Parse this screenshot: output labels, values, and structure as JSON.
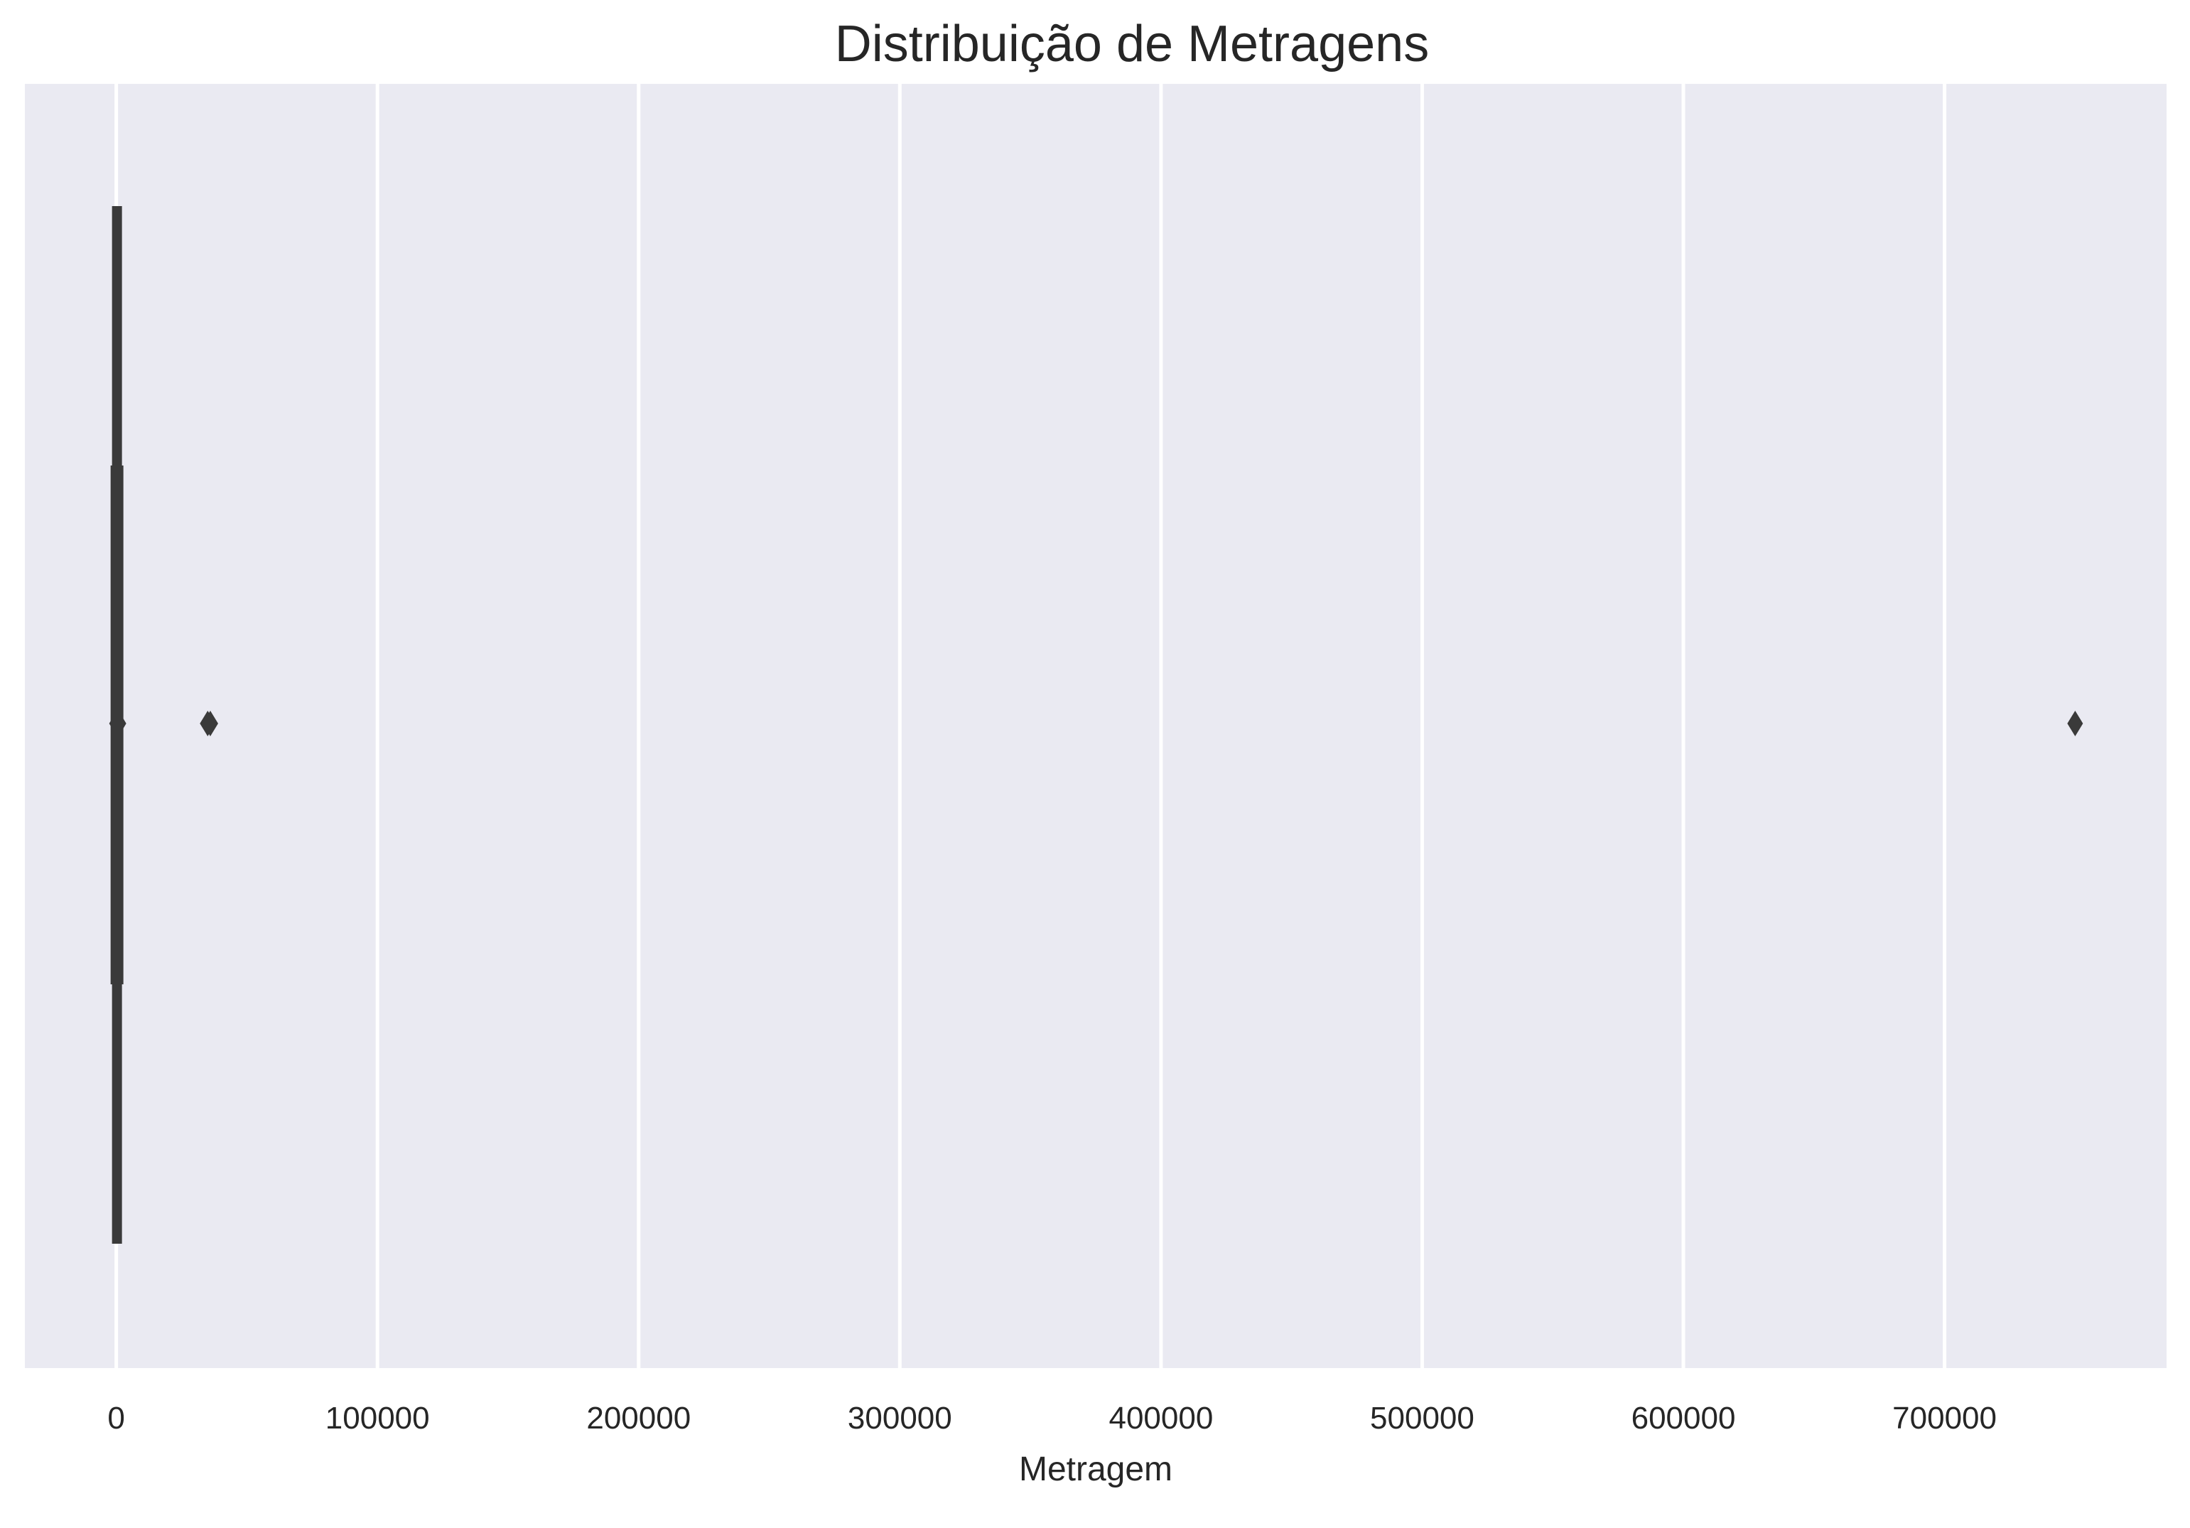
{
  "chart_data": {
    "type": "violin",
    "title": "Distribuição de Metragens",
    "xlabel": "Metragem",
    "ylabel": "",
    "xlim": [
      -35000,
      785000
    ],
    "xticks": [
      0,
      100000,
      200000,
      300000,
      400000,
      500000,
      600000,
      700000
    ],
    "xtick_labels": [
      "0",
      "100000",
      "200000",
      "300000",
      "400000",
      "500000",
      "600000",
      "700000"
    ],
    "grid": true,
    "legend": "none",
    "series": [
      {
        "whisker_low": 0,
        "q1": 0,
        "median": 0,
        "q3": 3000,
        "whisker_high": 3000,
        "outliers": [
          35000,
          36000,
          750000
        ]
      }
    ]
  },
  "colors": {
    "plot_background": "#eaeaf2",
    "grid": "#ffffff",
    "marks": "#3a3a3a",
    "text": "#262626"
  }
}
